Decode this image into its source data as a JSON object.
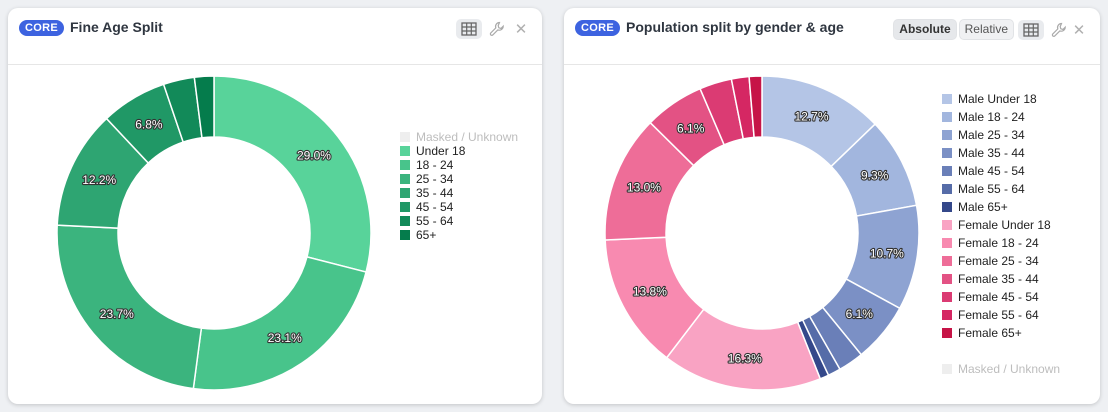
{
  "colors": {
    "badge": "#3d63e0",
    "fine_age": [
      "#eeeeee",
      "#58d39a",
      "#48c48b",
      "#3bb47e",
      "#2ea572",
      "#209866",
      "#128a59",
      "#057c4c"
    ],
    "gender_age": [
      "#b4c5e6",
      "#a2b6de",
      "#8ea3d2",
      "#7b90c5",
      "#6a7fb8",
      "#566ca8",
      "#34488a",
      "#f9a3c3",
      "#f88ab0",
      "#ee6d98",
      "#e35284",
      "#db3b73",
      "#d52763",
      "#c61447",
      "#eeeeee"
    ]
  },
  "cards": [
    {
      "badge": "CORE",
      "title": "Fine Age Split",
      "icons": [
        "table-icon",
        "wrench-icon",
        "close-icon"
      ]
    },
    {
      "badge": "CORE",
      "title": "Population split by gender & age",
      "toggle": {
        "absolute": "Absolute",
        "relative": "Relative",
        "selected": "Absolute"
      },
      "icons": [
        "table-icon",
        "wrench-icon",
        "close-icon"
      ]
    }
  ],
  "chart_data": [
    {
      "type": "pie",
      "donut": true,
      "title": "Fine Age Split",
      "legend_position": "right",
      "categories": [
        "Masked / Unknown",
        "Under 18",
        "18 - 24",
        "25 - 34",
        "35 - 44",
        "45 - 54",
        "55 - 64",
        "65+"
      ],
      "values": [
        0,
        29.0,
        23.1,
        23.7,
        12.2,
        6.8,
        3.2,
        2.0
      ],
      "data_labels": [
        "",
        "29.0%",
        "23.1%",
        "23.7%",
        "12.2%",
        "6.8%",
        "",
        ""
      ]
    },
    {
      "type": "pie",
      "donut": true,
      "title": "Population split by gender & age",
      "legend_position": "right",
      "categories": [
        "Male Under 18",
        "Male 18 - 24",
        "Male 25 - 34",
        "Male 35 - 44",
        "Male 45 - 54",
        "Male 55 - 64",
        "Male 65+",
        "Female Under 18",
        "Female 18 - 24",
        "Female 25 - 34",
        "Female 35 - 44",
        "Female 45 - 54",
        "Female 55 - 64",
        "Female 65+",
        "Masked / Unknown"
      ],
      "values": [
        12.7,
        9.3,
        10.7,
        6.1,
        2.6,
        1.3,
        0.9,
        16.3,
        13.8,
        13.0,
        6.1,
        3.3,
        1.8,
        1.3,
        0
      ],
      "data_labels": [
        "12.7%",
        "9.3%",
        "10.7%",
        "6.1%",
        "",
        "",
        "",
        "16.3%",
        "13.8%",
        "13.0%",
        "6.1%",
        "",
        "",
        "",
        ""
      ]
    }
  ]
}
